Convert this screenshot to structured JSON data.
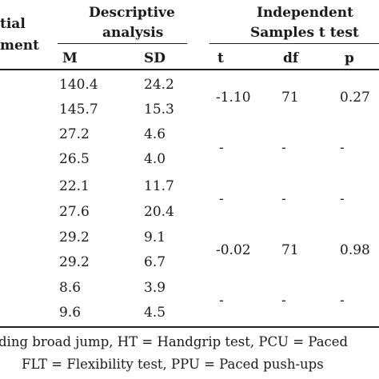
{
  "header": {
    "col1_line1": "tial",
    "col1_line2": "ment",
    "descriptive_line1": "Descriptive",
    "descriptive_line2": "analysis",
    "ttest_line1": "Independent",
    "ttest_line2": "Samples t test",
    "sub": {
      "m": "M",
      "sd": "SD",
      "t": "t",
      "df": "df",
      "p": "p"
    }
  },
  "rows": [
    {
      "m": "140.4",
      "sd": "24.2"
    },
    {
      "m": "145.7",
      "sd": "15.3"
    },
    {
      "m": "27.2",
      "sd": "4.6"
    },
    {
      "m": "26.5",
      "sd": "4.0"
    },
    {
      "m": "22.1",
      "sd": "11.7"
    },
    {
      "m": "27.6",
      "sd": "20.4"
    },
    {
      "m": "29.2",
      "sd": "9.1"
    },
    {
      "m": "29.2",
      "sd": "6.7"
    },
    {
      "m": "8.6",
      "sd": "3.9"
    },
    {
      "m": "9.6",
      "sd": "4.5"
    }
  ],
  "tests": [
    {
      "t": "-1.10",
      "df": "71",
      "p": "0.27"
    },
    {
      "t": "-",
      "df": "-",
      "p": "-"
    },
    {
      "t": "-",
      "df": "-",
      "p": "-"
    },
    {
      "t": "-0.02",
      "df": "71",
      "p": "0.98"
    },
    {
      "t": "-",
      "df": "-",
      "p": "-"
    }
  ],
  "footnote": {
    "line1": "ding broad jump, HT = Handgrip test, PCU = Paced",
    "line2": "FLT = Flexibility test, PPU = Paced push-ups"
  }
}
